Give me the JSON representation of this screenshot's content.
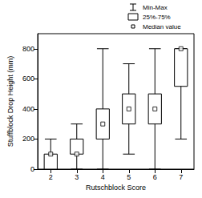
{
  "chart_data": {
    "type": "boxplot",
    "x_label": "Rutschblock Score",
    "y_label": "Stuffblock Drop Height (mm)",
    "categories": [
      "2",
      "3",
      "4",
      "5",
      "6",
      "7"
    ],
    "series": [
      {
        "name": "Min-Max",
        "type": "whisker",
        "min": [
          0,
          0,
          0,
          100,
          0,
          200
        ],
        "max": [
          200,
          300,
          800,
          700,
          800,
          800
        ]
      },
      {
        "name": "25%-75%",
        "type": "box",
        "q1": [
          0,
          100,
          200,
          300,
          300,
          550
        ],
        "q3": [
          100,
          200,
          400,
          500,
          500,
          800
        ]
      },
      {
        "name": "Median value",
        "type": "median",
        "marker": "square",
        "values": [
          100,
          100,
          300,
          400,
          400,
          800
        ]
      }
    ],
    "ylim": [
      0,
      900
    ],
    "yticks": [
      0,
      200,
      400,
      600,
      800
    ],
    "grid": false,
    "legend": "upper right"
  }
}
